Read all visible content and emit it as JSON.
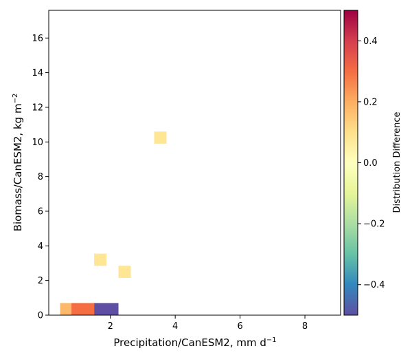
{
  "chart_data": {
    "type": "heatmap",
    "xlabel": "Precipitation/CanESM2,  mm d",
    "xlabel_sup": "−1",
    "ylabel": "Biomass/CanESM2,  kg m",
    "ylabel_sup": "−2",
    "xlim": [
      0.1,
      9.1
    ],
    "ylim": [
      0,
      17.6
    ],
    "xticks": [
      2,
      4,
      6,
      8
    ],
    "yticks": [
      0,
      2,
      4,
      6,
      8,
      10,
      12,
      14,
      16
    ],
    "cells": [
      {
        "x0": 0.45,
        "x1": 0.8,
        "y0": 0.0,
        "y1": 0.7,
        "value": 0.18
      },
      {
        "x0": 0.8,
        "x1": 1.5,
        "y0": 0.0,
        "y1": 0.7,
        "value": 0.3
      },
      {
        "x0": 1.5,
        "x1": 2.25,
        "y0": 0.0,
        "y1": 0.7,
        "value": -0.5
      },
      {
        "x0": 1.5,
        "x1": 1.88,
        "y0": 2.85,
        "y1": 3.55,
        "value": 0.08
      },
      {
        "x0": 2.25,
        "x1": 2.63,
        "y0": 2.15,
        "y1": 2.85,
        "value": 0.08
      },
      {
        "x0": 3.35,
        "x1": 3.73,
        "y0": 9.9,
        "y1": 10.6,
        "value": 0.08
      }
    ],
    "colorbar": {
      "label": "Distribution Difference",
      "range": [
        -0.5,
        0.5
      ],
      "ticks": [
        {
          "value": -0.4,
          "label": "−0.4"
        },
        {
          "value": -0.2,
          "label": "−0.2"
        },
        {
          "value": 0.0,
          "label": "0.0"
        },
        {
          "value": 0.2,
          "label": "0.2"
        },
        {
          "value": 0.4,
          "label": "0.4"
        }
      ],
      "colormap": "Spectral_r",
      "stops": [
        "#5e4fa2",
        "#3288bd",
        "#66c2a5",
        "#abdda4",
        "#e6f598",
        "#ffffbf",
        "#fee08b",
        "#fdae61",
        "#f46d43",
        "#d53e4f",
        "#9e0142"
      ]
    }
  }
}
